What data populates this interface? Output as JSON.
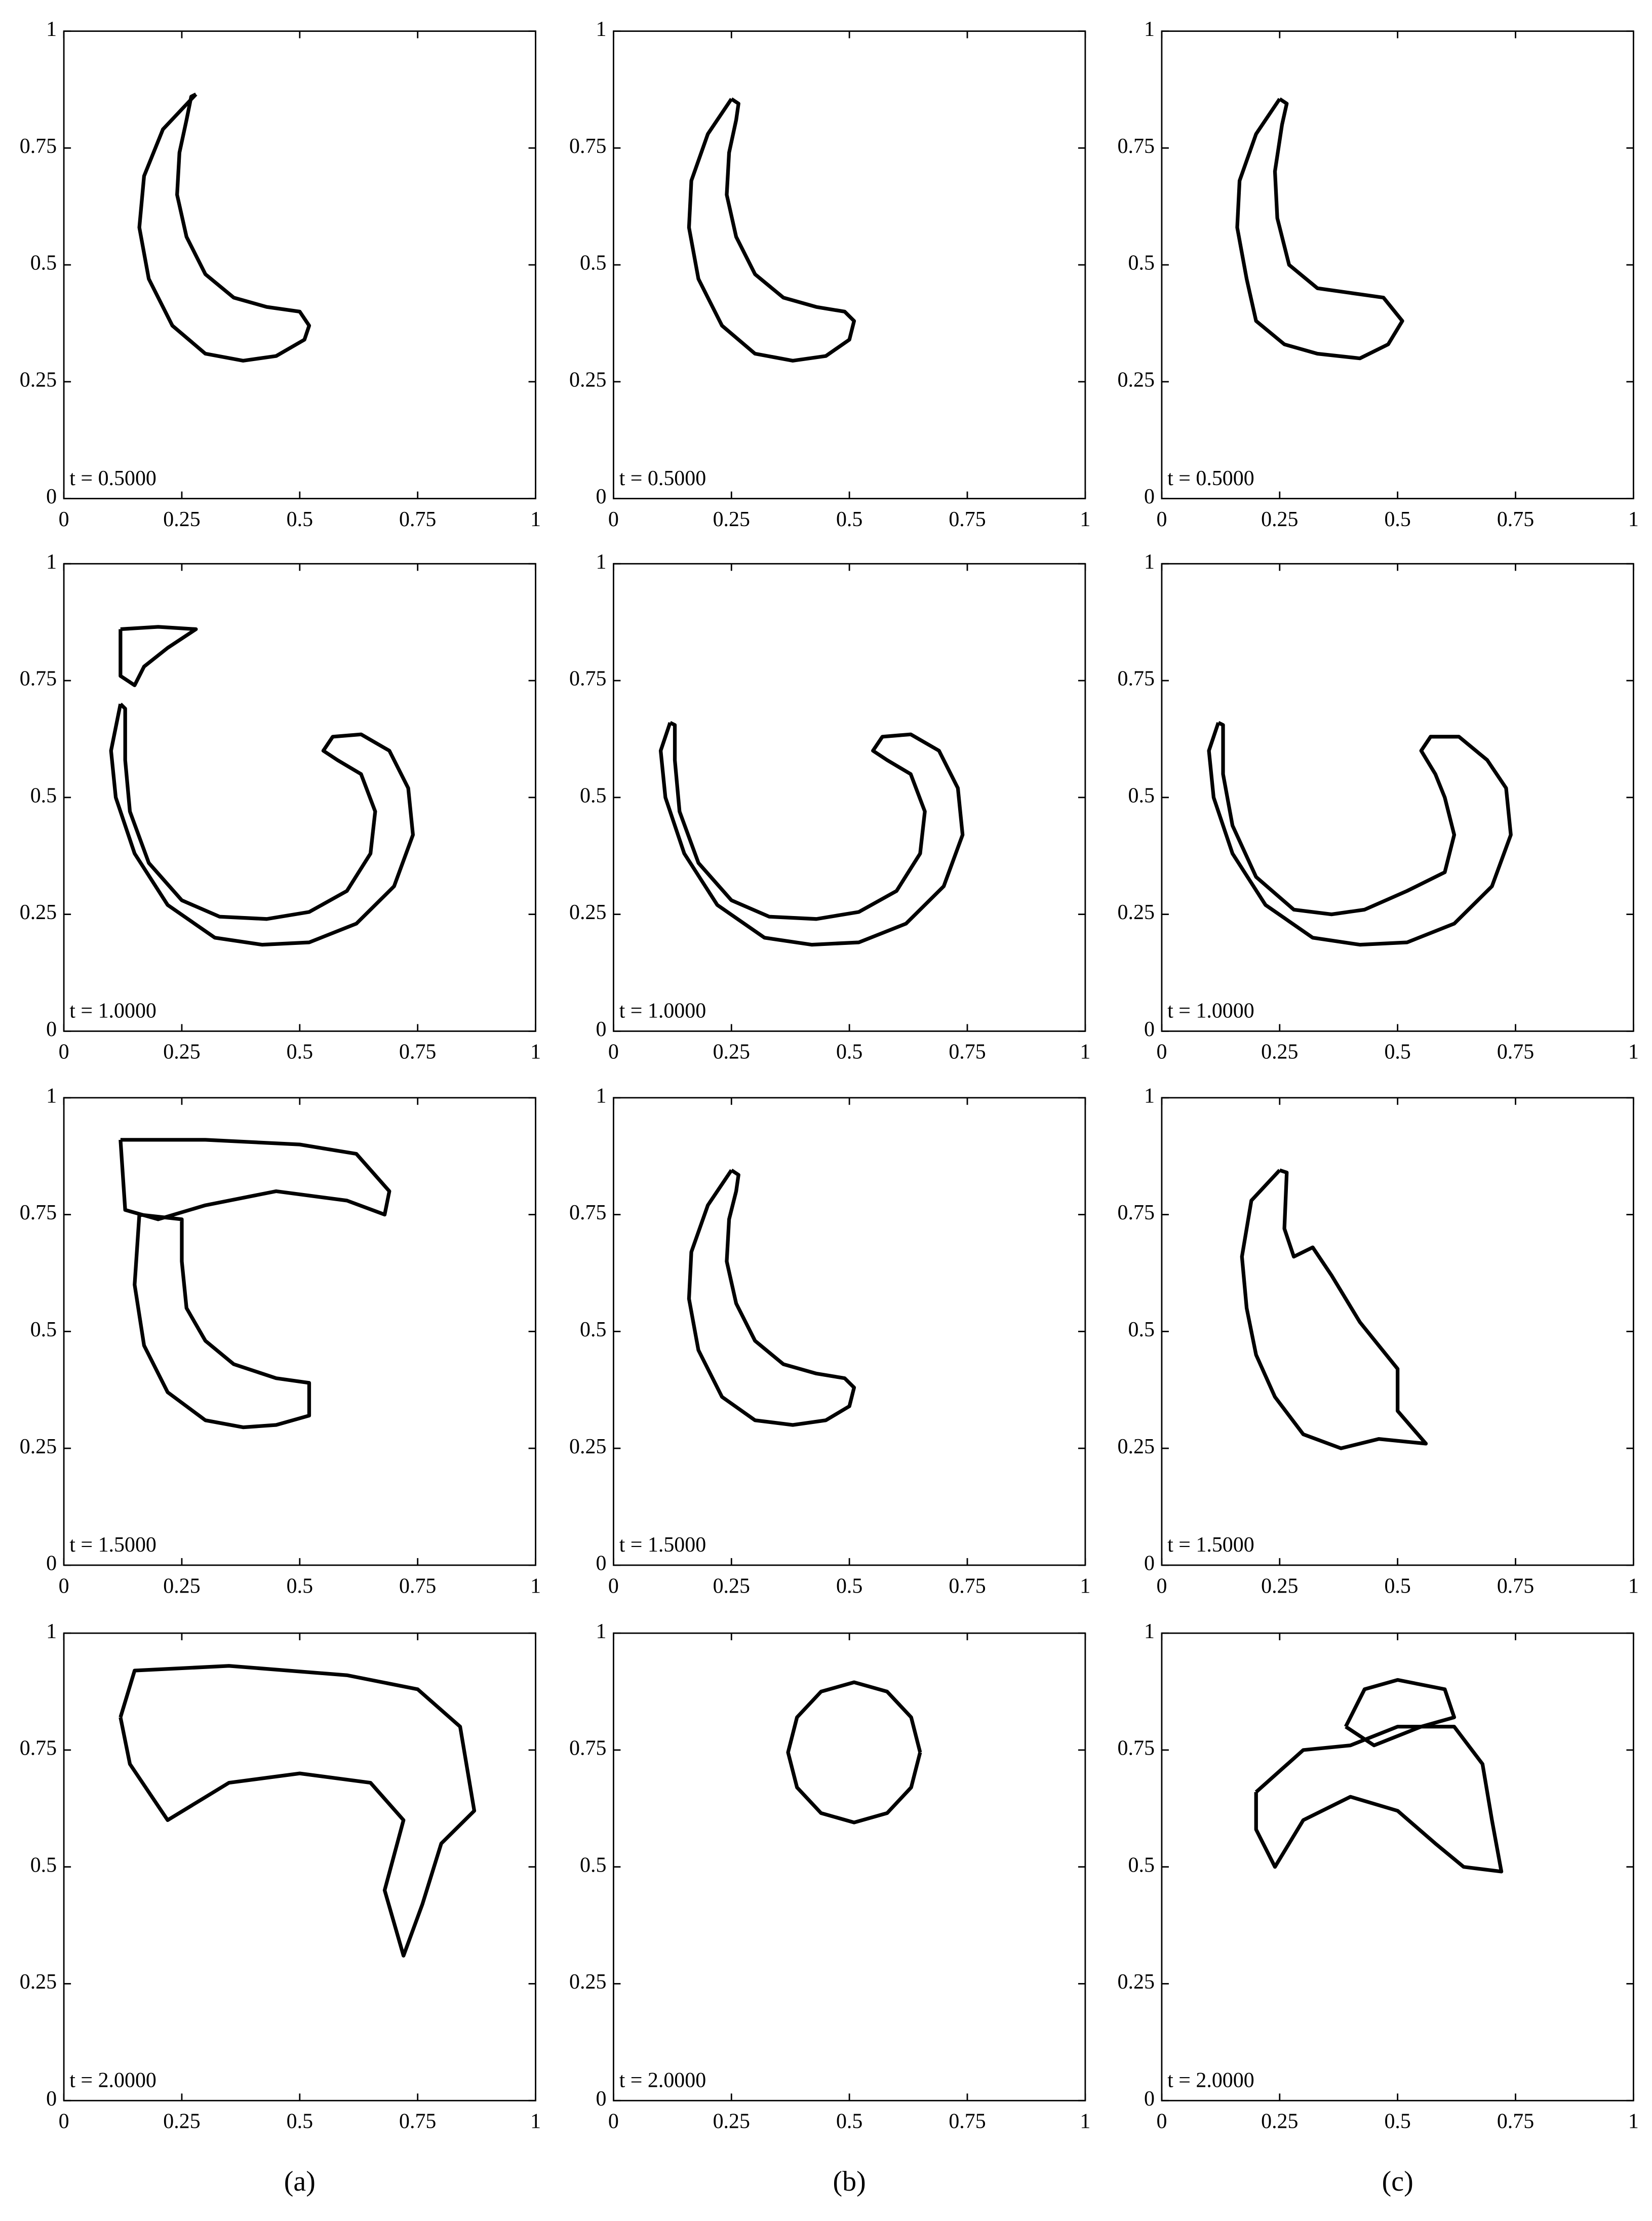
{
  "chart_data": [
    {
      "type": "line",
      "annotation": "t = 0.5000",
      "xlim": [
        0,
        1
      ],
      "ylim": [
        0,
        1
      ],
      "xticks": [
        0,
        0.25,
        0.5,
        0.75,
        1
      ],
      "yticks": [
        0,
        0.25,
        0.5,
        0.75,
        1
      ],
      "series": [
        {
          "color": "#000000",
          "x": [
            0.28,
            0.21,
            0.17,
            0.16,
            0.18,
            0.23,
            0.3,
            0.38,
            0.45,
            0.51,
            0.52,
            0.5,
            0.43,
            0.36,
            0.3,
            0.26,
            0.24,
            0.245,
            0.26,
            0.27,
            0.28
          ],
          "y": [
            0.865,
            0.79,
            0.69,
            0.58,
            0.47,
            0.37,
            0.31,
            0.295,
            0.305,
            0.34,
            0.37,
            0.4,
            0.41,
            0.43,
            0.48,
            0.56,
            0.65,
            0.74,
            0.81,
            0.86,
            0.865
          ]
        }
      ]
    },
    {
      "type": "line",
      "annotation": "t = 0.5000",
      "xlim": [
        0,
        1
      ],
      "ylim": [
        0,
        1
      ],
      "xticks": [
        0,
        0.25,
        0.5,
        0.75,
        1
      ],
      "yticks": [
        0,
        0.25,
        0.5,
        0.75,
        1
      ],
      "series": [
        {
          "color": "#000000",
          "x": [
            0.25,
            0.2,
            0.165,
            0.16,
            0.18,
            0.23,
            0.3,
            0.38,
            0.45,
            0.5,
            0.51,
            0.49,
            0.43,
            0.36,
            0.3,
            0.26,
            0.24,
            0.245,
            0.26,
            0.265,
            0.25
          ],
          "y": [
            0.855,
            0.78,
            0.68,
            0.58,
            0.47,
            0.37,
            0.31,
            0.295,
            0.305,
            0.34,
            0.38,
            0.4,
            0.41,
            0.43,
            0.48,
            0.56,
            0.65,
            0.74,
            0.81,
            0.845,
            0.855
          ]
        }
      ]
    },
    {
      "type": "line",
      "annotation": "t = 0.5000",
      "xlim": [
        0,
        1
      ],
      "ylim": [
        0,
        1
      ],
      "xticks": [
        0,
        0.25,
        0.5,
        0.75,
        1
      ],
      "yticks": [
        0,
        0.25,
        0.5,
        0.75,
        1
      ],
      "series": [
        {
          "color": "#000000",
          "x": [
            0.25,
            0.2,
            0.165,
            0.16,
            0.18,
            0.2,
            0.26,
            0.33,
            0.42,
            0.48,
            0.51,
            0.47,
            0.4,
            0.33,
            0.27,
            0.245,
            0.24,
            0.255,
            0.265,
            0.25
          ],
          "y": [
            0.855,
            0.78,
            0.68,
            0.58,
            0.47,
            0.38,
            0.33,
            0.31,
            0.3,
            0.33,
            0.38,
            0.43,
            0.44,
            0.45,
            0.5,
            0.6,
            0.7,
            0.8,
            0.845,
            0.855
          ]
        }
      ]
    },
    {
      "type": "line",
      "annotation": "t = 1.0000",
      "xlim": [
        0,
        1
      ],
      "ylim": [
        0,
        1
      ],
      "xticks": [
        0,
        0.25,
        0.5,
        0.75,
        1
      ],
      "yticks": [
        0,
        0.25,
        0.5,
        0.75,
        1
      ],
      "series": [
        {
          "color": "#000000",
          "x": [
            0.12,
            0.1,
            0.11,
            0.15,
            0.22,
            0.32,
            0.42,
            0.52,
            0.62,
            0.7,
            0.74,
            0.73,
            0.69,
            0.63,
            0.57,
            0.55,
            0.58,
            0.63,
            0.66,
            0.65,
            0.6,
            0.52,
            0.43,
            0.33,
            0.25,
            0.18,
            0.14,
            0.13,
            0.13,
            0.12
          ],
          "y": [
            0.7,
            0.6,
            0.5,
            0.38,
            0.27,
            0.2,
            0.185,
            0.19,
            0.23,
            0.31,
            0.42,
            0.52,
            0.6,
            0.635,
            0.63,
            0.6,
            0.58,
            0.55,
            0.47,
            0.38,
            0.3,
            0.255,
            0.24,
            0.245,
            0.28,
            0.36,
            0.47,
            0.58,
            0.69,
            0.7
          ]
        },
        {
          "color": "#000000",
          "x": [
            0.12,
            0.2,
            0.28,
            0.22,
            0.17,
            0.15,
            0.12,
            0.12
          ],
          "y": [
            0.86,
            0.865,
            0.86,
            0.82,
            0.78,
            0.74,
            0.76,
            0.86
          ]
        }
      ]
    },
    {
      "type": "line",
      "annotation": "t = 1.0000",
      "xlim": [
        0,
        1
      ],
      "ylim": [
        0,
        1
      ],
      "xticks": [
        0,
        0.25,
        0.5,
        0.75,
        1
      ],
      "yticks": [
        0,
        0.25,
        0.5,
        0.75,
        1
      ],
      "series": [
        {
          "color": "#000000",
          "x": [
            0.12,
            0.1,
            0.11,
            0.15,
            0.22,
            0.32,
            0.42,
            0.52,
            0.62,
            0.7,
            0.74,
            0.73,
            0.69,
            0.63,
            0.57,
            0.55,
            0.58,
            0.63,
            0.66,
            0.65,
            0.6,
            0.52,
            0.43,
            0.33,
            0.25,
            0.18,
            0.14,
            0.13,
            0.13,
            0.12
          ],
          "y": [
            0.66,
            0.6,
            0.5,
            0.38,
            0.27,
            0.2,
            0.185,
            0.19,
            0.23,
            0.31,
            0.42,
            0.52,
            0.6,
            0.635,
            0.63,
            0.6,
            0.58,
            0.55,
            0.47,
            0.38,
            0.3,
            0.255,
            0.24,
            0.245,
            0.28,
            0.36,
            0.47,
            0.58,
            0.655,
            0.66
          ]
        }
      ]
    },
    {
      "type": "line",
      "annotation": "t = 1.0000",
      "xlim": [
        0,
        1
      ],
      "ylim": [
        0,
        1
      ],
      "xticks": [
        0,
        0.25,
        0.5,
        0.75,
        1
      ],
      "yticks": [
        0,
        0.25,
        0.5,
        0.75,
        1
      ],
      "series": [
        {
          "color": "#000000",
          "x": [
            0.12,
            0.1,
            0.11,
            0.15,
            0.22,
            0.32,
            0.42,
            0.52,
            0.62,
            0.7,
            0.74,
            0.73,
            0.69,
            0.63,
            0.57,
            0.55,
            0.58,
            0.6,
            0.62,
            0.6,
            0.52,
            0.43,
            0.36,
            0.28,
            0.2,
            0.15,
            0.13,
            0.13,
            0.12
          ],
          "y": [
            0.66,
            0.6,
            0.5,
            0.38,
            0.27,
            0.2,
            0.185,
            0.19,
            0.23,
            0.31,
            0.42,
            0.52,
            0.58,
            0.63,
            0.63,
            0.6,
            0.55,
            0.5,
            0.42,
            0.34,
            0.3,
            0.26,
            0.25,
            0.26,
            0.33,
            0.44,
            0.55,
            0.655,
            0.66
          ]
        }
      ]
    },
    {
      "type": "line",
      "annotation": "t = 1.5000",
      "xlim": [
        0,
        1
      ],
      "ylim": [
        0,
        1
      ],
      "xticks": [
        0,
        0.25,
        0.5,
        0.75,
        1
      ],
      "yticks": [
        0,
        0.25,
        0.5,
        0.75,
        1
      ],
      "series": [
        {
          "color": "#000000",
          "x": [
            0.12,
            0.3,
            0.5,
            0.62,
            0.69,
            0.68,
            0.6,
            0.45,
            0.3,
            0.2,
            0.13,
            0.12
          ],
          "y": [
            0.91,
            0.91,
            0.9,
            0.88,
            0.8,
            0.75,
            0.78,
            0.8,
            0.77,
            0.74,
            0.76,
            0.91
          ]
        },
        {
          "color": "#000000",
          "x": [
            0.16,
            0.15,
            0.17,
            0.22,
            0.3,
            0.38,
            0.45,
            0.52,
            0.52,
            0.45,
            0.36,
            0.3,
            0.26,
            0.25,
            0.25,
            0.16
          ],
          "y": [
            0.75,
            0.6,
            0.47,
            0.37,
            0.31,
            0.295,
            0.3,
            0.32,
            0.39,
            0.4,
            0.43,
            0.48,
            0.55,
            0.65,
            0.74,
            0.75
          ]
        }
      ]
    },
    {
      "type": "line",
      "annotation": "t = 1.5000",
      "xlim": [
        0,
        1
      ],
      "ylim": [
        0,
        1
      ],
      "xticks": [
        0,
        0.25,
        0.5,
        0.75,
        1
      ],
      "yticks": [
        0,
        0.25,
        0.5,
        0.75,
        1
      ],
      "series": [
        {
          "color": "#000000",
          "x": [
            0.25,
            0.2,
            0.165,
            0.16,
            0.18,
            0.23,
            0.3,
            0.38,
            0.45,
            0.5,
            0.51,
            0.49,
            0.43,
            0.36,
            0.3,
            0.26,
            0.24,
            0.245,
            0.26,
            0.265,
            0.25
          ],
          "y": [
            0.845,
            0.77,
            0.67,
            0.57,
            0.46,
            0.36,
            0.31,
            0.3,
            0.31,
            0.34,
            0.38,
            0.4,
            0.41,
            0.43,
            0.48,
            0.56,
            0.65,
            0.74,
            0.8,
            0.835,
            0.845
          ]
        }
      ]
    },
    {
      "type": "line",
      "annotation": "t = 1.5000",
      "xlim": [
        0,
        1
      ],
      "ylim": [
        0,
        1
      ],
      "xticks": [
        0,
        0.25,
        0.5,
        0.75,
        1
      ],
      "yticks": [
        0,
        0.25,
        0.5,
        0.75,
        1
      ],
      "series": [
        {
          "color": "#000000",
          "x": [
            0.25,
            0.19,
            0.17,
            0.18,
            0.2,
            0.24,
            0.3,
            0.38,
            0.46,
            0.56,
            0.5,
            0.5,
            0.42,
            0.36,
            0.32,
            0.28,
            0.26,
            0.265,
            0.25
          ],
          "y": [
            0.845,
            0.78,
            0.66,
            0.55,
            0.45,
            0.36,
            0.28,
            0.25,
            0.27,
            0.26,
            0.33,
            0.42,
            0.52,
            0.62,
            0.68,
            0.66,
            0.72,
            0.84,
            0.845
          ]
        }
      ]
    },
    {
      "type": "line",
      "annotation": "t = 2.0000",
      "xlim": [
        0,
        1
      ],
      "ylim": [
        0,
        1
      ],
      "xticks": [
        0,
        0.25,
        0.5,
        0.75,
        1
      ],
      "yticks": [
        0,
        0.25,
        0.5,
        0.75,
        1
      ],
      "series": [
        {
          "color": "#000000",
          "x": [
            0.12,
            0.15,
            0.35,
            0.6,
            0.75,
            0.84,
            0.87,
            0.8,
            0.76,
            0.72,
            0.68,
            0.72,
            0.65,
            0.5,
            0.35,
            0.22,
            0.14,
            0.12
          ],
          "y": [
            0.82,
            0.92,
            0.93,
            0.91,
            0.88,
            0.8,
            0.62,
            0.55,
            0.42,
            0.31,
            0.45,
            0.6,
            0.68,
            0.7,
            0.68,
            0.6,
            0.72,
            0.82
          ]
        }
      ]
    },
    {
      "type": "line",
      "annotation": "t = 2.0000",
      "xlim": [
        0,
        1
      ],
      "ylim": [
        0,
        1
      ],
      "xticks": [
        0,
        0.25,
        0.5,
        0.75,
        1
      ],
      "yticks": [
        0,
        0.25,
        0.5,
        0.75,
        1
      ],
      "series": [
        {
          "color": "#000000",
          "x": [
            0.65,
            0.631,
            0.58,
            0.51,
            0.44,
            0.389,
            0.37,
            0.389,
            0.44,
            0.51,
            0.58,
            0.631,
            0.65
          ],
          "y": [
            0.745,
            0.82,
            0.875,
            0.895,
            0.875,
            0.82,
            0.745,
            0.67,
            0.615,
            0.595,
            0.615,
            0.67,
            0.745
          ]
        }
      ]
    },
    {
      "type": "line",
      "annotation": "t = 2.0000",
      "xlim": [
        0,
        1
      ],
      "ylim": [
        0,
        1
      ],
      "xticks": [
        0,
        0.25,
        0.5,
        0.75,
        1
      ],
      "yticks": [
        0,
        0.25,
        0.5,
        0.75,
        1
      ],
      "series": [
        {
          "color": "#000000",
          "x": [
            0.39,
            0.43,
            0.5,
            0.6,
            0.62,
            0.55,
            0.45,
            0.39
          ],
          "y": [
            0.8,
            0.88,
            0.9,
            0.88,
            0.82,
            0.8,
            0.76,
            0.8
          ]
        },
        {
          "color": "#000000",
          "x": [
            0.2,
            0.3,
            0.4,
            0.5,
            0.62,
            0.68,
            0.7,
            0.72,
            0.64,
            0.58,
            0.5,
            0.4,
            0.3,
            0.24,
            0.2,
            0.2
          ],
          "y": [
            0.66,
            0.75,
            0.76,
            0.8,
            0.8,
            0.72,
            0.6,
            0.49,
            0.5,
            0.55,
            0.62,
            0.65,
            0.6,
            0.5,
            0.58,
            0.66
          ]
        }
      ]
    }
  ],
  "panel_labels": [
    "(a)",
    "(b)",
    "(c)"
  ]
}
